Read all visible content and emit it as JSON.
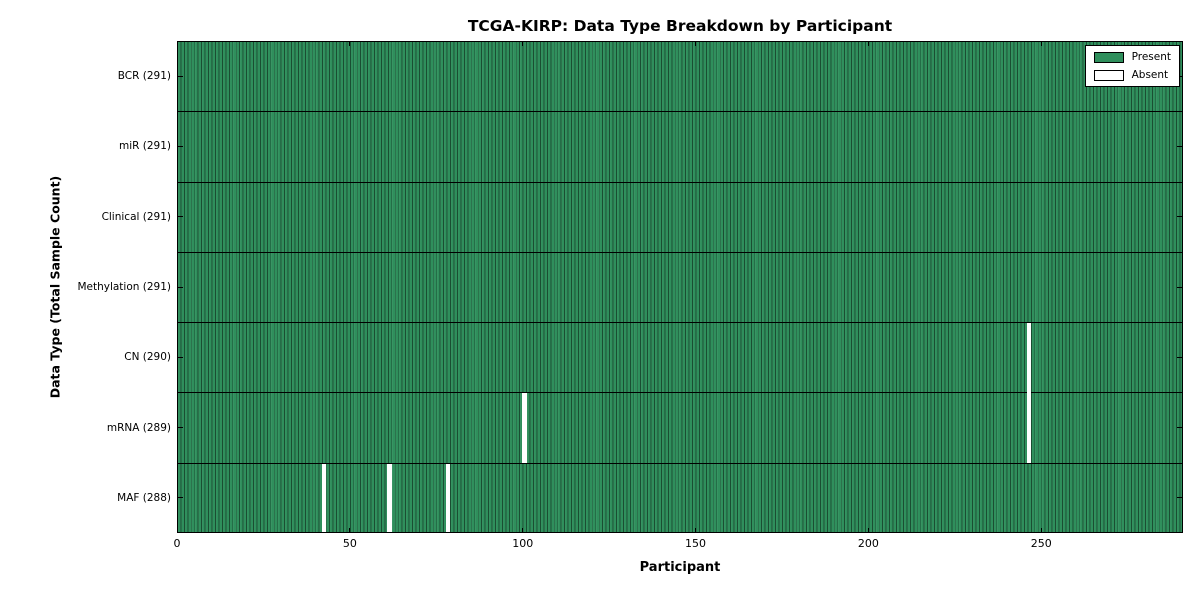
{
  "chart_data": {
    "type": "heatmap",
    "title": "TCGA-KIRP: Data Type Breakdown by Participant",
    "xlabel": "Participant",
    "ylabel": "Data Type (Total Sample Count)",
    "n_participants": 291,
    "xlim": [
      0,
      291
    ],
    "x_ticks": [
      0,
      50,
      100,
      150,
      200,
      250
    ],
    "grid": false,
    "rows": [
      {
        "label": "BCR (291)",
        "data_type": "BCR",
        "total": 291,
        "absent_participants": []
      },
      {
        "label": "miR (291)",
        "data_type": "miR",
        "total": 291,
        "absent_participants": []
      },
      {
        "label": "Clinical (291)",
        "data_type": "Clinical",
        "total": 291,
        "absent_participants": []
      },
      {
        "label": "Methylation (291)",
        "data_type": "Methylation",
        "total": 291,
        "absent_participants": []
      },
      {
        "label": "CN (290)",
        "data_type": "CN",
        "total": 290,
        "absent_participants": [
          246
        ]
      },
      {
        "label": "mRNA (289)",
        "data_type": "mRNA",
        "total": 289,
        "absent_participants": [
          100,
          246
        ]
      },
      {
        "label": "MAF (288)",
        "data_type": "MAF",
        "total": 288,
        "absent_participants": [
          42,
          61,
          78
        ]
      }
    ],
    "legend": {
      "position": "upper right",
      "entries": [
        {
          "label": "Present",
          "color": "#2f8f5c"
        },
        {
          "label": "Absent",
          "color": "#ffffff"
        }
      ]
    },
    "colors": {
      "present": "#2f8f5c",
      "absent": "#ffffff",
      "bar_edge": "#1a4e32",
      "row_divider": "#000000",
      "frame": "#000000"
    }
  }
}
